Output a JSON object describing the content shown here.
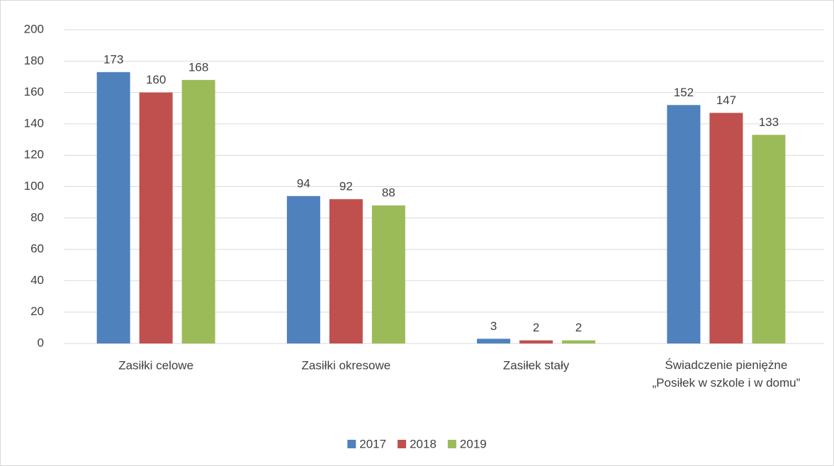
{
  "chart_data": {
    "type": "bar",
    "categories": [
      "Zasiłki celowe",
      "Zasiłki okresowe",
      "Zasiłek stały",
      "Świadczenie pieniężne „Posiłek w szkole i w domu”"
    ],
    "series": [
      {
        "name": "2017",
        "color": "#4f81bd",
        "values": [
          173,
          94,
          3,
          152
        ]
      },
      {
        "name": "2018",
        "color": "#c0504d",
        "values": [
          160,
          92,
          2,
          147
        ]
      },
      {
        "name": "2019",
        "color": "#9bbb59",
        "values": [
          168,
          88,
          2,
          133
        ]
      }
    ],
    "ylim": [
      0,
      200
    ],
    "yticks": [
      0,
      20,
      40,
      60,
      80,
      100,
      120,
      140,
      160,
      180,
      200
    ],
    "grid": true,
    "legend": "bottom"
  }
}
